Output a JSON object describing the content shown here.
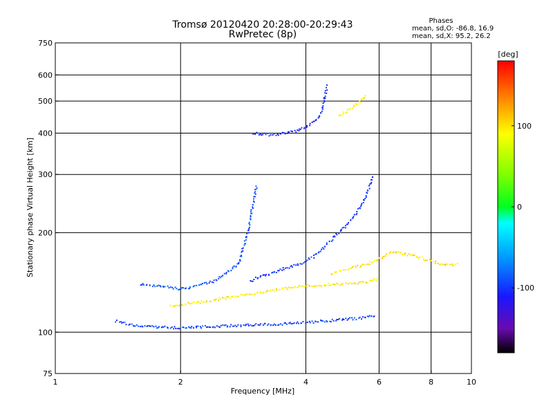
{
  "title": {
    "line1": "Tromsø 20120420 20:28:00-20:29:43",
    "line2": "RwPretec (8p)"
  },
  "phase_info": {
    "heading": "Phases",
    "o_line": "mean, sd,O: -86.8, 16.9",
    "x_line": "mean, sd,X:  95.2, 26.2"
  },
  "chart_data": {
    "type": "scatter",
    "xlabel": "Frequency [MHz]",
    "ylabel": "Stationary phase Virtual Height [km]",
    "xscale": "log",
    "yscale": "log",
    "xlim": [
      1,
      10
    ],
    "ylim": [
      75,
      750
    ],
    "x_ticks": [
      1,
      2,
      4,
      6,
      8,
      10
    ],
    "x_tick_labels": [
      "1",
      "2",
      "4",
      "6",
      "8",
      "10"
    ],
    "y_ticks": [
      75,
      100,
      200,
      300,
      400,
      500,
      600,
      750
    ],
    "y_tick_labels": [
      "75",
      "100",
      "200",
      "300",
      "400",
      "500",
      "600",
      "750"
    ],
    "grid": true,
    "colorbar": {
      "label": "[deg]",
      "range": [
        -180,
        180
      ],
      "ticks": [
        -100,
        0,
        100
      ],
      "tick_labels": [
        "-100",
        "0",
        "100"
      ],
      "stops": [
        {
          "v": -180,
          "color": "#000000"
        },
        {
          "v": -150,
          "color": "#6a0ab0"
        },
        {
          "v": -110,
          "color": "#1818ff"
        },
        {
          "v": -60,
          "color": "#00a0ff"
        },
        {
          "v": -20,
          "color": "#00ffff"
        },
        {
          "v": 0,
          "color": "#00ff20"
        },
        {
          "v": 40,
          "color": "#80ff00"
        },
        {
          "v": 90,
          "color": "#ffff00"
        },
        {
          "v": 130,
          "color": "#ff9000"
        },
        {
          "v": 180,
          "color": "#ff0000"
        }
      ]
    },
    "series": [
      {
        "mode": "O",
        "curves": [
          {
            "f": [
              1.4,
              1.6,
              2.0,
              2.4,
              2.9,
              3.6,
              4.4,
              5.3,
              5.9
            ],
            "h": [
              108,
              104,
              103,
              104,
              105,
              106,
              108,
              110,
              112
            ],
            "phase": -95
          },
          {
            "f": [
              1.6,
              1.75,
              2.0,
              2.4,
              2.75,
              2.9,
              3.05
            ],
            "h": [
              140,
              138,
              135,
              142,
              160,
              200,
              280
            ],
            "phase": -90
          },
          {
            "f": [
              2.95,
              3.1,
              3.3,
              3.5,
              3.7,
              3.85,
              4.0,
              4.2,
              4.4,
              4.6,
              4.8,
              5.0,
              5.3,
              5.6,
              5.8
            ],
            "h": [
              142,
              148,
              150,
              155,
              158,
              160,
              165,
              170,
              180,
              190,
              200,
              210,
              230,
              260,
              300
            ],
            "phase": -100
          },
          {
            "f": [
              3.0,
              3.3,
              3.6,
              3.9,
              4.1,
              4.3,
              4.4,
              4.5
            ],
            "h": [
              400,
              395,
              400,
              410,
              425,
              445,
              480,
              560
            ],
            "phase": -105
          }
        ]
      },
      {
        "mode": "X",
        "curves": [
          {
            "f": [
              1.9,
              2.4,
              2.9,
              3.5,
              4.0,
              4.8,
              5.6,
              6.0
            ],
            "h": [
              120,
              125,
              130,
              135,
              138,
              140,
              142,
              145
            ],
            "phase": 95
          },
          {
            "f": [
              4.6,
              5.0,
              5.6,
              6.5,
              7.3,
              8.5,
              9.3
            ],
            "h": [
              150,
              155,
              160,
              175,
              170,
              160,
              160
            ],
            "phase": 100
          },
          {
            "f": [
              4.8,
              5.2,
              5.6
            ],
            "h": [
              450,
              480,
              520
            ],
            "phase": 90
          }
        ]
      }
    ]
  }
}
